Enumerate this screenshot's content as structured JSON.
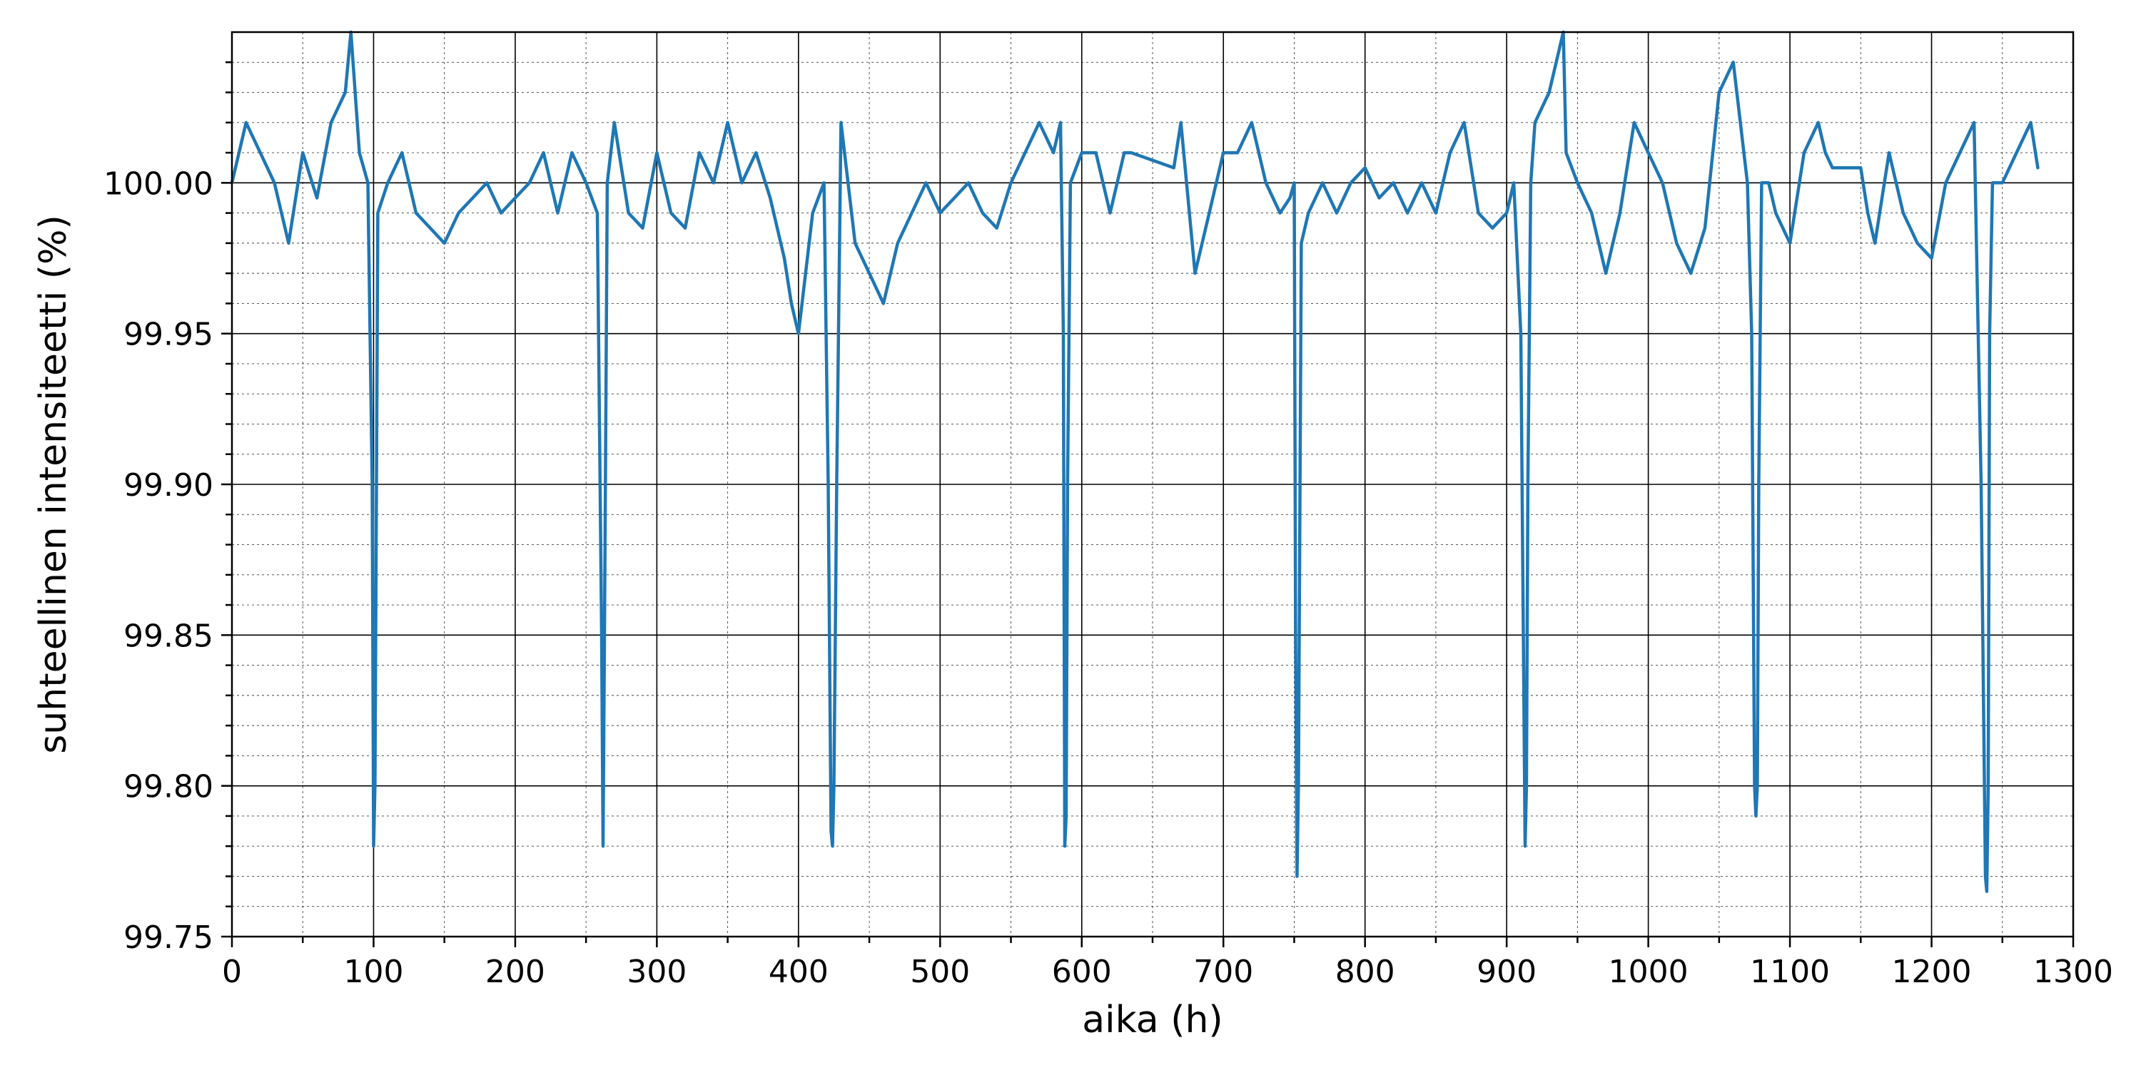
{
  "chart_data": {
    "type": "line",
    "xlabel": "aika (h)",
    "ylabel": "suhteellinen intensiteetti (%)",
    "xlim": [
      0,
      1300
    ],
    "ylim": [
      99.75,
      100.05
    ],
    "x_ticks": [
      "0",
      "100",
      "200",
      "300",
      "400",
      "500",
      "600",
      "700",
      "800",
      "900",
      "1000",
      "1100",
      "1200",
      "1300"
    ],
    "y_ticks": [
      "99.75",
      "99.80",
      "99.85",
      "99.90",
      "99.95",
      "100.00"
    ],
    "grid": "major and minor",
    "line_color": "#1f77b4",
    "series": [
      {
        "x": [
          0,
          10,
          20,
          30,
          40,
          50,
          60,
          70,
          80,
          84,
          90,
          96,
          99,
          100,
          101,
          103,
          110,
          120,
          130,
          140,
          150,
          160,
          170,
          180,
          190,
          200,
          210,
          220,
          230,
          240,
          250,
          258,
          261,
          262,
          263,
          265,
          270,
          280,
          290,
          300,
          310,
          320,
          330,
          340,
          350,
          360,
          370,
          380,
          390,
          395,
          400,
          405,
          410,
          418,
          421,
          423,
          424,
          425,
          427,
          430,
          440,
          450,
          460,
          470,
          480,
          490,
          500,
          510,
          520,
          530,
          540,
          550,
          560,
          570,
          580,
          585,
          587,
          588,
          589,
          590,
          592,
          600,
          610,
          620,
          630,
          635,
          665,
          670,
          680,
          690,
          700,
          710,
          720,
          730,
          740,
          747,
          750,
          751,
          752,
          753,
          755,
          760,
          770,
          780,
          790,
          800,
          810,
          820,
          830,
          840,
          850,
          860,
          870,
          880,
          890,
          900,
          905,
          910,
          913,
          914,
          915,
          917,
          920,
          930,
          940,
          942,
          950,
          960,
          970,
          980,
          990,
          1000,
          1010,
          1020,
          1030,
          1040,
          1050,
          1060,
          1065,
          1070,
          1073,
          1075,
          1076,
          1077,
          1078,
          1080,
          1085,
          1090,
          1100,
          1110,
          1120,
          1125,
          1130,
          1150,
          1155,
          1160,
          1170,
          1180,
          1190,
          1200,
          1210,
          1220,
          1230,
          1235,
          1238,
          1239,
          1240,
          1241,
          1243,
          1250,
          1260,
          1270,
          1275
        ],
        "y": [
          100.0,
          100.02,
          100.01,
          100.0,
          99.98,
          100.01,
          99.995,
          100.02,
          100.03,
          100.05,
          100.01,
          100.0,
          99.9,
          99.78,
          99.8,
          99.99,
          100.0,
          100.01,
          99.99,
          99.985,
          99.98,
          99.99,
          99.995,
          100.0,
          99.99,
          99.995,
          100.0,
          100.01,
          99.99,
          100.01,
          100.0,
          99.99,
          99.85,
          99.78,
          99.85,
          100.0,
          100.02,
          99.99,
          99.985,
          100.01,
          99.99,
          99.985,
          100.01,
          100.0,
          100.02,
          100.0,
          100.01,
          99.995,
          99.975,
          99.96,
          99.95,
          99.97,
          99.99,
          100.0,
          99.9,
          99.785,
          99.78,
          99.8,
          99.9,
          100.02,
          99.98,
          99.97,
          99.96,
          99.98,
          99.99,
          100.0,
          99.99,
          99.995,
          100.0,
          99.99,
          99.985,
          100.0,
          100.01,
          100.02,
          100.01,
          100.02,
          99.95,
          99.78,
          99.79,
          99.9,
          100.0,
          100.01,
          100.01,
          99.99,
          100.01,
          100.01,
          100.005,
          100.02,
          99.97,
          99.99,
          100.01,
          100.01,
          100.02,
          100.0,
          99.99,
          99.995,
          100.0,
          99.85,
          99.77,
          99.8,
          99.98,
          99.99,
          100.0,
          99.99,
          100.0,
          100.005,
          99.995,
          100.0,
          99.99,
          100.0,
          99.99,
          100.01,
          100.02,
          99.99,
          99.985,
          99.99,
          100.0,
          99.95,
          99.78,
          99.8,
          99.9,
          100.0,
          100.02,
          100.03,
          100.05,
          100.01,
          100.0,
          99.99,
          99.97,
          99.99,
          100.02,
          100.01,
          100.0,
          99.98,
          99.97,
          99.985,
          100.03,
          100.04,
          100.02,
          100.0,
          99.95,
          99.8,
          99.79,
          99.8,
          99.9,
          100.0,
          100.0,
          99.99,
          99.98,
          100.01,
          100.02,
          100.01,
          100.005,
          100.005,
          99.99,
          99.98,
          100.01,
          99.99,
          99.98,
          99.975,
          100.0,
          100.01,
          100.02,
          99.9,
          99.77,
          99.765,
          99.8,
          99.95,
          100.0,
          100.0,
          100.01,
          100.02,
          100.005
        ]
      }
    ]
  }
}
